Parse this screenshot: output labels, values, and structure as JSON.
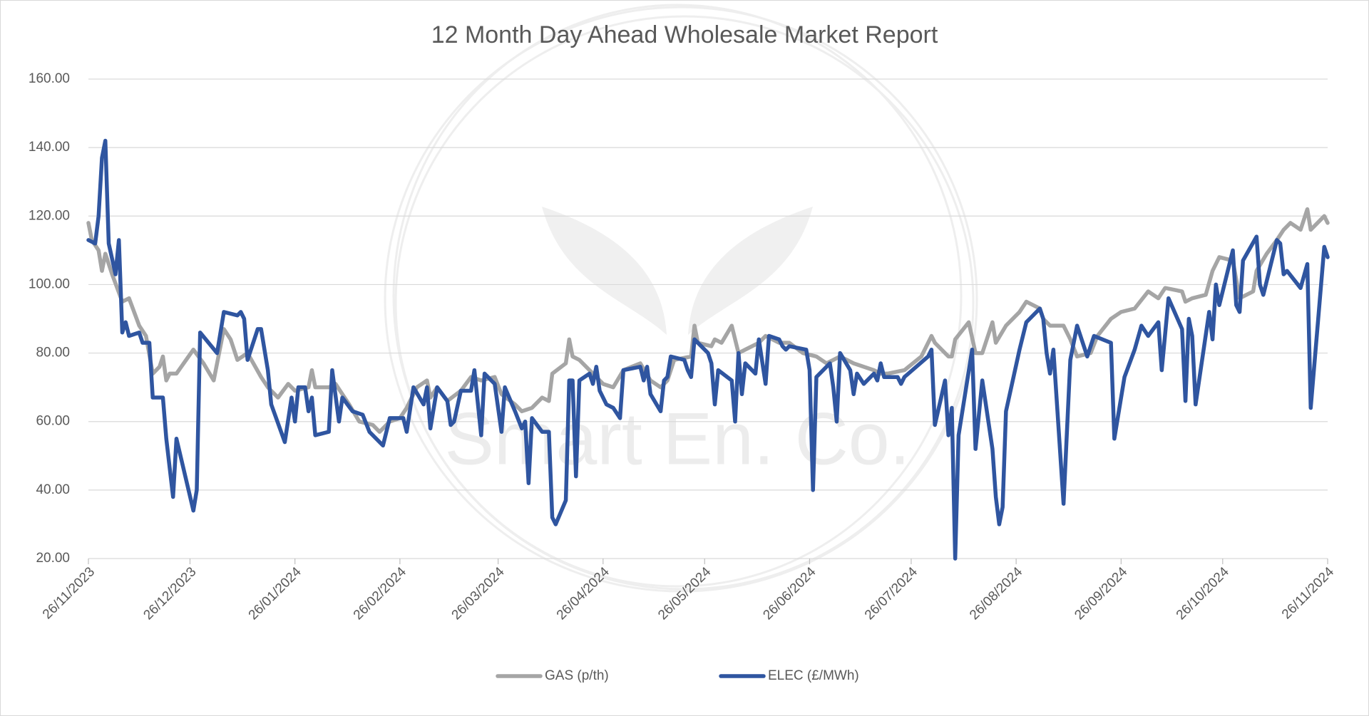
{
  "chart_data": {
    "type": "line",
    "title": "12 Month Day Ahead Wholesale Market Report",
    "watermark": "Smart En. Co.",
    "xlim": [
      "2023-11-26",
      "2024-11-26"
    ],
    "xticks": [
      {
        "value": "2023-11-26",
        "label": "26/11/2023"
      },
      {
        "value": "2023-12-26",
        "label": "26/12/2023"
      },
      {
        "value": "2024-01-26",
        "label": "26/01/2024"
      },
      {
        "value": "2024-02-26",
        "label": "26/02/2024"
      },
      {
        "value": "2024-03-26",
        "label": "26/03/2024"
      },
      {
        "value": "2024-04-26",
        "label": "26/04/2024"
      },
      {
        "value": "2024-05-26",
        "label": "26/05/2024"
      },
      {
        "value": "2024-06-26",
        "label": "26/06/2024"
      },
      {
        "value": "2024-07-26",
        "label": "26/07/2024"
      },
      {
        "value": "2024-08-26",
        "label": "26/08/2024"
      },
      {
        "value": "2024-09-26",
        "label": "26/09/2024"
      },
      {
        "value": "2024-10-26",
        "label": "26/10/2024"
      },
      {
        "value": "2024-11-26",
        "label": "26/11/2024"
      }
    ],
    "ylim": [
      20,
      160
    ],
    "yticks": [
      {
        "value": 20,
        "label": "20.00"
      },
      {
        "value": 40,
        "label": "40.00"
      },
      {
        "value": 60,
        "label": "60.00"
      },
      {
        "value": 80,
        "label": "80.00"
      },
      {
        "value": 100,
        "label": "100.00"
      },
      {
        "value": 120,
        "label": "120.00"
      },
      {
        "value": 140,
        "label": "140.00"
      },
      {
        "value": 160,
        "label": "160.00"
      }
    ],
    "grid": true,
    "legend": "bottom",
    "series": [
      {
        "name": "GAS (p/th)",
        "color": "#a5a5a5",
        "x": [
          "2023-11-26",
          "2023-11-27",
          "2023-11-29",
          "2023-11-30",
          "2023-12-01",
          "2023-12-03",
          "2023-12-06",
          "2023-12-08",
          "2023-12-11",
          "2023-12-13",
          "2023-12-15",
          "2023-12-17",
          "2023-12-18",
          "2023-12-19",
          "2023-12-20",
          "2023-12-22",
          "2023-12-27",
          "2023-12-30",
          "2024-01-02",
          "2024-01-05",
          "2024-01-07",
          "2024-01-09",
          "2024-01-12",
          "2024-01-16",
          "2024-01-18",
          "2024-01-21",
          "2024-01-24",
          "2024-01-26",
          "2024-01-30",
          "2024-01-31",
          "2024-02-01",
          "2024-02-05",
          "2024-02-07",
          "2024-02-11",
          "2024-02-14",
          "2024-02-18",
          "2024-02-20",
          "2024-02-23",
          "2024-02-26",
          "2024-02-28",
          "2024-03-02",
          "2024-03-05",
          "2024-03-06",
          "2024-03-08",
          "2024-03-11",
          "2024-03-15",
          "2024-03-18",
          "2024-03-21",
          "2024-03-25",
          "2024-03-27",
          "2024-03-31",
          "2024-04-02",
          "2024-04-05",
          "2024-04-08",
          "2024-04-10",
          "2024-04-11",
          "2024-04-15",
          "2024-04-16",
          "2024-04-17",
          "2024-04-19",
          "2024-04-24",
          "2024-04-26",
          "2024-04-29",
          "2024-05-02",
          "2024-05-07",
          "2024-05-10",
          "2024-05-13",
          "2024-05-15",
          "2024-05-17",
          "2024-05-22",
          "2024-05-23",
          "2024-05-24",
          "2024-05-28",
          "2024-05-29",
          "2024-05-31",
          "2024-06-03",
          "2024-06-05",
          "2024-06-07",
          "2024-06-11",
          "2024-06-13",
          "2024-06-17",
          "2024-06-20",
          "2024-06-24",
          "2024-06-28",
          "2024-07-01",
          "2024-07-05",
          "2024-07-09",
          "2024-07-15",
          "2024-07-17",
          "2024-07-19",
          "2024-07-24",
          "2024-07-29",
          "2024-08-01",
          "2024-08-02",
          "2024-08-05",
          "2024-08-06",
          "2024-08-07",
          "2024-08-08",
          "2024-08-12",
          "2024-08-14",
          "2024-08-16",
          "2024-08-19",
          "2024-08-20",
          "2024-08-23",
          "2024-08-27",
          "2024-08-29",
          "2024-09-02",
          "2024-09-03",
          "2024-09-05",
          "2024-09-09",
          "2024-09-11",
          "2024-09-13",
          "2024-09-17",
          "2024-09-19",
          "2024-09-23",
          "2024-09-26",
          "2024-09-30",
          "2024-10-04",
          "2024-10-07",
          "2024-10-09",
          "2024-10-14",
          "2024-10-15",
          "2024-10-17",
          "2024-10-21",
          "2024-10-23",
          "2024-10-25",
          "2024-10-29",
          "2024-10-31",
          "2024-11-04",
          "2024-11-05",
          "2024-11-08",
          "2024-11-11",
          "2024-11-13",
          "2024-11-15",
          "2024-11-18",
          "2024-11-20",
          "2024-11-21",
          "2024-11-25",
          "2024-11-26"
        ],
        "values": [
          118,
          113,
          110,
          104,
          109,
          103,
          95,
          96,
          88,
          85,
          74,
          76,
          79,
          72,
          74,
          74,
          81,
          77,
          72,
          87,
          84,
          78,
          80,
          73,
          70,
          67,
          71,
          69,
          70,
          75,
          70,
          70,
          71,
          65,
          60,
          59,
          57,
          60,
          61,
          64,
          70,
          72,
          67,
          70,
          66,
          69,
          73,
          72,
          73,
          68,
          65,
          63,
          64,
          67,
          66,
          74,
          77,
          84,
          79,
          78,
          73,
          71,
          70,
          75,
          77,
          72,
          70,
          72,
          78,
          79,
          88,
          83,
          82,
          84,
          83,
          88,
          80,
          81,
          83,
          85,
          83,
          83,
          80,
          79,
          77,
          79,
          77,
          75,
          74,
          74,
          75,
          79,
          85,
          83,
          80,
          79,
          79,
          84,
          89,
          80,
          80,
          89,
          83,
          88,
          92,
          95,
          93,
          90,
          88,
          88,
          84,
          79,
          80,
          85,
          90,
          92,
          93,
          98,
          96,
          99,
          98,
          95,
          96,
          97,
          104,
          108,
          107,
          96,
          98,
          104,
          109,
          113,
          116,
          118,
          116,
          122,
          116,
          120,
          118
        ]
      },
      {
        "name": "ELEC (£/MWh)",
        "color": "#2f55a0",
        "x": [
          "2023-11-26",
          "2023-11-28",
          "2023-11-29",
          "2023-11-30",
          "2023-12-01",
          "2023-12-02",
          "2023-12-04",
          "2023-12-05",
          "2023-12-06",
          "2023-12-07",
          "2023-12-08",
          "2023-12-11",
          "2023-12-12",
          "2023-12-14",
          "2023-12-15",
          "2023-12-18",
          "2023-12-19",
          "2023-12-21",
          "2023-12-22",
          "2023-12-27",
          "2023-12-28",
          "2023-12-29",
          "2024-01-03",
          "2024-01-05",
          "2024-01-09",
          "2024-01-10",
          "2024-01-11",
          "2024-01-12",
          "2024-01-15",
          "2024-01-16",
          "2024-01-18",
          "2024-01-19",
          "2024-01-23",
          "2024-01-25",
          "2024-01-26",
          "2024-01-27",
          "2024-01-29",
          "2024-01-30",
          "2024-01-31",
          "2024-02-01",
          "2024-02-05",
          "2024-02-06",
          "2024-02-08",
          "2024-02-09",
          "2024-02-12",
          "2024-02-15",
          "2024-02-17",
          "2024-02-21",
          "2024-02-23",
          "2024-02-27",
          "2024-02-28",
          "2024-03-01",
          "2024-03-04",
          "2024-03-05",
          "2024-03-06",
          "2024-03-08",
          "2024-03-11",
          "2024-03-12",
          "2024-03-13",
          "2024-03-15",
          "2024-03-18",
          "2024-03-19",
          "2024-03-21",
          "2024-03-22",
          "2024-03-25",
          "2024-03-27",
          "2024-03-28",
          "2024-03-31",
          "2024-04-02",
          "2024-04-03",
          "2024-04-04",
          "2024-04-05",
          "2024-04-08",
          "2024-04-10",
          "2024-04-11",
          "2024-04-12",
          "2024-04-15",
          "2024-04-16",
          "2024-04-17",
          "2024-04-18",
          "2024-04-19",
          "2024-04-22",
          "2024-04-23",
          "2024-04-24",
          "2024-04-25",
          "2024-04-27",
          "2024-04-29",
          "2024-05-01",
          "2024-05-02",
          "2024-05-07",
          "2024-05-08",
          "2024-05-09",
          "2024-05-10",
          "2024-05-13",
          "2024-05-14",
          "2024-05-15",
          "2024-05-16",
          "2024-05-20",
          "2024-05-21",
          "2024-05-22",
          "2024-05-23",
          "2024-05-24",
          "2024-05-27",
          "2024-05-28",
          "2024-05-29",
          "2024-05-30",
          "2024-06-03",
          "2024-06-04",
          "2024-06-05",
          "2024-06-06",
          "2024-06-07",
          "2024-06-10",
          "2024-06-11",
          "2024-06-13",
          "2024-06-14",
          "2024-06-17",
          "2024-06-18",
          "2024-06-19",
          "2024-06-20",
          "2024-06-25",
          "2024-06-26",
          "2024-06-27",
          "2024-06-28",
          "2024-07-02",
          "2024-07-03",
          "2024-07-04",
          "2024-07-05",
          "2024-07-08",
          "2024-07-09",
          "2024-07-10",
          "2024-07-12",
          "2024-07-15",
          "2024-07-16",
          "2024-07-17",
          "2024-07-18",
          "2024-07-22",
          "2024-07-23",
          "2024-07-24",
          "2024-07-31",
          "2024-08-01",
          "2024-08-02",
          "2024-08-05",
          "2024-08-06",
          "2024-08-07",
          "2024-08-08",
          "2024-08-09",
          "2024-08-13",
          "2024-08-14",
          "2024-08-16",
          "2024-08-19",
          "2024-08-20",
          "2024-08-21",
          "2024-08-22",
          "2024-08-23",
          "2024-08-27",
          "2024-08-29",
          "2024-08-30",
          "2024-09-02",
          "2024-09-03",
          "2024-09-04",
          "2024-09-05",
          "2024-09-06",
          "2024-09-09",
          "2024-09-11",
          "2024-09-13",
          "2024-09-16",
          "2024-09-18",
          "2024-09-23",
          "2024-09-24",
          "2024-09-27",
          "2024-09-30",
          "2024-10-02",
          "2024-10-04",
          "2024-10-07",
          "2024-10-08",
          "2024-10-10",
          "2024-10-14",
          "2024-10-15",
          "2024-10-16",
          "2024-10-17",
          "2024-10-18",
          "2024-10-22",
          "2024-10-23",
          "2024-10-24",
          "2024-10-25",
          "2024-10-29",
          "2024-10-30",
          "2024-10-31",
          "2024-11-01",
          "2024-11-05",
          "2024-11-06",
          "2024-11-07",
          "2024-11-11",
          "2024-11-12",
          "2024-11-13",
          "2024-11-14",
          "2024-11-18",
          "2024-11-20",
          "2024-11-21",
          "2024-11-25",
          "2024-11-26"
        ],
        "values": [
          113,
          112,
          120,
          137,
          142,
          112,
          103,
          113,
          86,
          89,
          85,
          86,
          83,
          83,
          67,
          67,
          55,
          38,
          55,
          34,
          40,
          86,
          80,
          92,
          91,
          92,
          90,
          78,
          87,
          87,
          75,
          65,
          54,
          67,
          60,
          70,
          70,
          63,
          67,
          56,
          57,
          75,
          60,
          67,
          63,
          62,
          57,
          53,
          61,
          61,
          57,
          70,
          65,
          70,
          58,
          70,
          66,
          59,
          60,
          69,
          69,
          75,
          56,
          74,
          71,
          57,
          70,
          63,
          58,
          60,
          42,
          61,
          57,
          57,
          32,
          30,
          37,
          72,
          72,
          44,
          72,
          74,
          71,
          76,
          69,
          65,
          64,
          61,
          75,
          76,
          72,
          76,
          68,
          63,
          72,
          73,
          79,
          78,
          75,
          73,
          84,
          83,
          80,
          77,
          65,
          75,
          72,
          60,
          80,
          68,
          77,
          74,
          84,
          71,
          85,
          84,
          82,
          81,
          82,
          81,
          75,
          40,
          73,
          77,
          70,
          60,
          80,
          75,
          68,
          74,
          71,
          74,
          72,
          77,
          73,
          73,
          71,
          73,
          79,
          81,
          59,
          72,
          56,
          64,
          20,
          56,
          81,
          52,
          72,
          52,
          38,
          30,
          35,
          63,
          81,
          89,
          90,
          93,
          90,
          80,
          74,
          81,
          36,
          78,
          88,
          79,
          85,
          83,
          55,
          73,
          81,
          88,
          85,
          89,
          75,
          96,
          87,
          66,
          90,
          85,
          65,
          92,
          84,
          100,
          94,
          110,
          94,
          92,
          107,
          114,
          100,
          97,
          113,
          112,
          103,
          104,
          99,
          106,
          64,
          111,
          108
        ]
      }
    ]
  }
}
